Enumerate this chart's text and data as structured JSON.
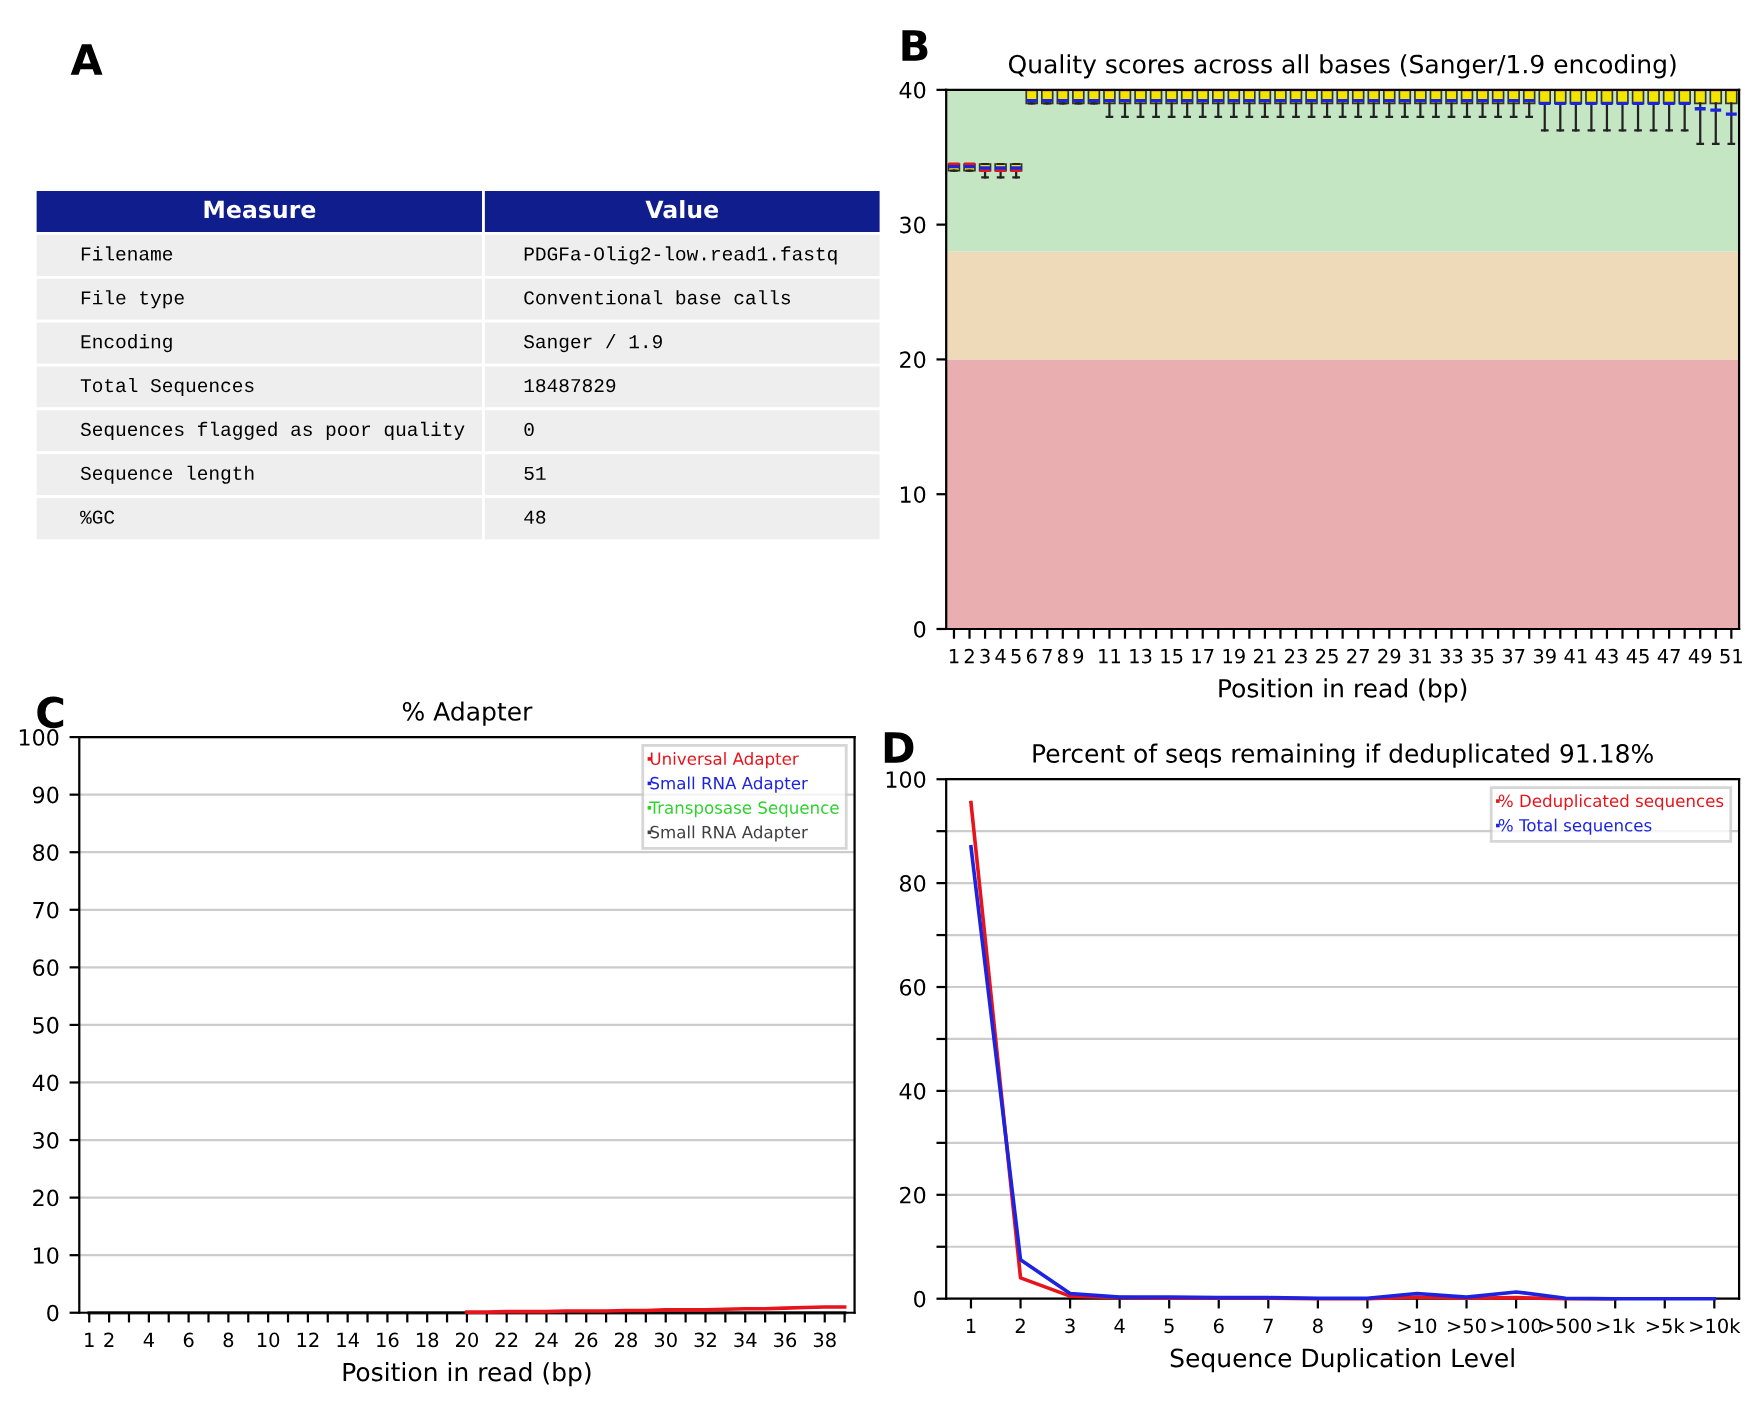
{
  "chart_data": [
    {
      "type": "other",
      "annotations": [
        "A"
      ],
      "categories": [
        "Measure",
        "Value"
      ],
      "y_categories": [
        "Filename",
        "File type",
        "Encoding",
        "Total Sequences",
        "Sequences flagged as poor quality",
        "Sequence length",
        "%GC"
      ],
      "cell_labels": [
        [
          "PDGFa-Olig2-low.read1.fastq"
        ],
        [
          "Conventional base calls"
        ],
        [
          "Sanger / 1.9"
        ],
        [
          "18487829"
        ],
        [
          "0"
        ],
        [
          "51"
        ],
        [
          "48"
        ]
      ]
    },
    {
      "type": "box",
      "title": "Quality scores across all bases (Sanger/1.9 encoding)",
      "xlabel": "Position in read (bp)",
      "annotations": [
        "B"
      ],
      "color": "#f2e600",
      "categories": [
        "1",
        "2",
        "3",
        "4",
        "5",
        "6",
        "7",
        "8",
        "9",
        null,
        "11",
        null,
        "13",
        null,
        "15",
        null,
        "17",
        null,
        "19",
        null,
        "21",
        null,
        "23",
        null,
        "25",
        null,
        "27",
        null,
        "29",
        null,
        "31",
        null,
        "33",
        null,
        "35",
        null,
        "37",
        null,
        "39",
        null,
        "41",
        null,
        "43",
        null,
        "45",
        null,
        "47",
        null,
        "49",
        null,
        "51"
      ],
      "ylim": [
        0,
        40
      ],
      "yticks": [
        0,
        10,
        20,
        30,
        40
      ],
      "grid": false,
      "bands": [
        {
          "axis": "y",
          "from": 0,
          "to": 20,
          "color": "#e8aeb0"
        },
        {
          "axis": "y",
          "from": 20,
          "to": 28,
          "color": "#eed9b8"
        },
        {
          "axis": "y",
          "from": 28,
          "to": 40,
          "color": "#c4e6c2"
        }
      ],
      "boxes": [
        {
          "low": 34,
          "q1": 34,
          "median": 34.5,
          "q3": 34.5,
          "high": 34.5,
          "mean": 34.3
        },
        {
          "low": 34,
          "q1": 34,
          "median": 34.5,
          "q3": 34.5,
          "high": 34.5,
          "mean": 34.3
        },
        {
          "low": 33.5,
          "q1": 34,
          "median": 34,
          "q3": 34.5,
          "high": 34.5,
          "mean": 34.2
        },
        {
          "low": 33.5,
          "q1": 34,
          "median": 34,
          "q3": 34.5,
          "high": 34.5,
          "mean": 34.2
        },
        {
          "low": 33.5,
          "q1": 34,
          "median": 34,
          "q3": 34.5,
          "high": 34.5,
          "mean": 34.2
        },
        {
          "low": 39,
          "q1": 39,
          "median": 40,
          "q3": 40,
          "high": 40,
          "mean": 39.2
        },
        {
          "low": 39,
          "q1": 39,
          "median": 40,
          "q3": 40,
          "high": 40,
          "mean": 39.2
        },
        {
          "low": 39,
          "q1": 39,
          "median": 40,
          "q3": 40,
          "high": 40,
          "mean": 39.2
        },
        {
          "low": 39,
          "q1": 39,
          "median": 40,
          "q3": 40,
          "high": 40,
          "mean": 39.2
        },
        {
          "low": 39,
          "q1": 39,
          "median": 40,
          "q3": 40,
          "high": 40,
          "mean": 39.2
        },
        {
          "low": 38,
          "q1": 39,
          "median": 40,
          "q3": 40,
          "high": 40,
          "mean": 39.2
        },
        {
          "low": 38,
          "q1": 39,
          "median": 40,
          "q3": 40,
          "high": 40,
          "mean": 39.2
        },
        {
          "low": 38,
          "q1": 39,
          "median": 40,
          "q3": 40,
          "high": 40,
          "mean": 39.2
        },
        {
          "low": 38,
          "q1": 39,
          "median": 40,
          "q3": 40,
          "high": 40,
          "mean": 39.2
        },
        {
          "low": 38,
          "q1": 39,
          "median": 40,
          "q3": 40,
          "high": 40,
          "mean": 39.2
        },
        {
          "low": 38,
          "q1": 39,
          "median": 40,
          "q3": 40,
          "high": 40,
          "mean": 39.2
        },
        {
          "low": 38,
          "q1": 39,
          "median": 40,
          "q3": 40,
          "high": 40,
          "mean": 39.2
        },
        {
          "low": 38,
          "q1": 39,
          "median": 40,
          "q3": 40,
          "high": 40,
          "mean": 39.2
        },
        {
          "low": 38,
          "q1": 39,
          "median": 40,
          "q3": 40,
          "high": 40,
          "mean": 39.2
        },
        {
          "low": 38,
          "q1": 39,
          "median": 40,
          "q3": 40,
          "high": 40,
          "mean": 39.2
        },
        {
          "low": 38,
          "q1": 39,
          "median": 40,
          "q3": 40,
          "high": 40,
          "mean": 39.2
        },
        {
          "low": 38,
          "q1": 39,
          "median": 40,
          "q3": 40,
          "high": 40,
          "mean": 39.2
        },
        {
          "low": 38,
          "q1": 39,
          "median": 40,
          "q3": 40,
          "high": 40,
          "mean": 39.2
        },
        {
          "low": 38,
          "q1": 39,
          "median": 40,
          "q3": 40,
          "high": 40,
          "mean": 39.2
        },
        {
          "low": 38,
          "q1": 39,
          "median": 40,
          "q3": 40,
          "high": 40,
          "mean": 39.2
        },
        {
          "low": 38,
          "q1": 39,
          "median": 40,
          "q3": 40,
          "high": 40,
          "mean": 39.2
        },
        {
          "low": 38,
          "q1": 39,
          "median": 40,
          "q3": 40,
          "high": 40,
          "mean": 39.2
        },
        {
          "low": 38,
          "q1": 39,
          "median": 40,
          "q3": 40,
          "high": 40,
          "mean": 39.2
        },
        {
          "low": 38,
          "q1": 39,
          "median": 40,
          "q3": 40,
          "high": 40,
          "mean": 39.2
        },
        {
          "low": 38,
          "q1": 39,
          "median": 40,
          "q3": 40,
          "high": 40,
          "mean": 39.2
        },
        {
          "low": 38,
          "q1": 39,
          "median": 40,
          "q3": 40,
          "high": 40,
          "mean": 39.2
        },
        {
          "low": 38,
          "q1": 39,
          "median": 40,
          "q3": 40,
          "high": 40,
          "mean": 39.2
        },
        {
          "low": 38,
          "q1": 39,
          "median": 40,
          "q3": 40,
          "high": 40,
          "mean": 39.2
        },
        {
          "low": 38,
          "q1": 39,
          "median": 40,
          "q3": 40,
          "high": 40,
          "mean": 39.2
        },
        {
          "low": 38,
          "q1": 39,
          "median": 40,
          "q3": 40,
          "high": 40,
          "mean": 39.2
        },
        {
          "low": 38,
          "q1": 39,
          "median": 40,
          "q3": 40,
          "high": 40,
          "mean": 39.2
        },
        {
          "low": 38,
          "q1": 39,
          "median": 40,
          "q3": 40,
          "high": 40,
          "mean": 39.2
        },
        {
          "low": 38,
          "q1": 39,
          "median": 40,
          "q3": 40,
          "high": 40,
          "mean": 39.2
        },
        {
          "low": 37,
          "q1": 39,
          "median": 40,
          "q3": 40,
          "high": 40,
          "mean": 39.0
        },
        {
          "low": 37,
          "q1": 39,
          "median": 40,
          "q3": 40,
          "high": 40,
          "mean": 39.0
        },
        {
          "low": 37,
          "q1": 39,
          "median": 40,
          "q3": 40,
          "high": 40,
          "mean": 39.0
        },
        {
          "low": 37,
          "q1": 39,
          "median": 40,
          "q3": 40,
          "high": 40,
          "mean": 39.0
        },
        {
          "low": 37,
          "q1": 39,
          "median": 40,
          "q3": 40,
          "high": 40,
          "mean": 39.0
        },
        {
          "low": 37,
          "q1": 39,
          "median": 40,
          "q3": 40,
          "high": 40,
          "mean": 39.0
        },
        {
          "low": 37,
          "q1": 39,
          "median": 40,
          "q3": 40,
          "high": 40,
          "mean": 39.0
        },
        {
          "low": 37,
          "q1": 39,
          "median": 40,
          "q3": 40,
          "high": 40,
          "mean": 39.0
        },
        {
          "low": 37,
          "q1": 39,
          "median": 40,
          "q3": 40,
          "high": 40,
          "mean": 39.0
        },
        {
          "low": 37,
          "q1": 39,
          "median": 40,
          "q3": 40,
          "high": 40,
          "mean": 39.0
        },
        {
          "low": 36,
          "q1": 39,
          "median": 40,
          "q3": 40,
          "high": 40,
          "mean": 38.6
        },
        {
          "low": 36,
          "q1": 39,
          "median": 40,
          "q3": 40,
          "high": 40,
          "mean": 38.5
        },
        {
          "low": 36,
          "q1": 39,
          "median": 40,
          "q3": 40,
          "high": 40,
          "mean": 38.2
        }
      ]
    },
    {
      "type": "line",
      "title": "% Adapter",
      "xlabel": "Position in read (bp)",
      "annotations": [
        "C"
      ],
      "categories": [
        "1",
        "2",
        null,
        "4",
        null,
        "6",
        null,
        "8",
        null,
        "10",
        null,
        "12",
        null,
        "14",
        null,
        "16",
        null,
        "18",
        null,
        "20",
        null,
        "22",
        null,
        "24",
        null,
        "26",
        null,
        "28",
        null,
        "30",
        null,
        "32",
        null,
        "34",
        null,
        "36",
        null,
        "38",
        null
      ],
      "ylim": [
        0,
        100
      ],
      "yticks": [
        0,
        10,
        20,
        30,
        40,
        50,
        60,
        70,
        80,
        90,
        100
      ],
      "grid": "y",
      "legend": "top right",
      "series": [
        {
          "name": "Universal Adapter",
          "color": "#e8141c",
          "values": [
            null,
            null,
            null,
            null,
            null,
            null,
            null,
            null,
            null,
            null,
            null,
            null,
            null,
            null,
            null,
            null,
            null,
            null,
            null,
            0.1,
            0.1,
            0.2,
            0.2,
            0.2,
            0.3,
            0.3,
            0.3,
            0.4,
            0.4,
            0.5,
            0.5,
            0.5,
            0.6,
            0.7,
            0.7,
            0.8,
            0.9,
            1.0,
            1.0
          ]
        },
        {
          "name": "Small RNA Adapter",
          "color": "#1c24e0",
          "values": [
            null,
            null,
            null,
            null,
            null,
            null,
            null,
            null,
            null,
            null,
            null,
            null,
            null,
            null,
            null,
            null,
            null,
            null,
            null,
            null,
            null,
            null,
            null,
            null,
            null,
            null,
            null,
            null,
            null,
            null,
            null,
            null,
            null,
            null,
            null,
            null,
            null,
            null,
            null
          ]
        },
        {
          "name": "Transposase Sequence",
          "color": "#2ed12e",
          "values": [
            null,
            null,
            null,
            null,
            null,
            null,
            null,
            null,
            null,
            null,
            null,
            null,
            null,
            null,
            null,
            null,
            null,
            null,
            null,
            null,
            null,
            null,
            null,
            null,
            null,
            null,
            null,
            null,
            null,
            null,
            null,
            null,
            null,
            null,
            null,
            null,
            null,
            null,
            null
          ]
        },
        {
          "name": "Small RNA Adapter",
          "color": "#404040",
          "values": [
            0,
            0,
            0,
            0,
            0,
            0,
            0,
            0,
            0,
            0,
            0,
            0,
            0,
            0,
            0,
            0,
            0,
            0,
            0,
            0,
            0,
            0,
            0,
            0,
            0,
            0,
            0,
            0,
            0,
            0,
            0,
            0,
            0,
            0,
            0,
            0,
            0,
            0,
            0
          ]
        }
      ]
    },
    {
      "type": "line",
      "title": "Percent of seqs remaining if deduplicated 91.18%",
      "xlabel": "Sequence Duplication Level",
      "annotations": [
        "D"
      ],
      "categories": [
        "1",
        "2",
        "3",
        "4",
        "5",
        "6",
        "7",
        "8",
        "9",
        ">10",
        ">50",
        ">100",
        ">500",
        ">1k",
        ">5k",
        ">10k"
      ],
      "ylim": [
        0,
        100
      ],
      "yticks": [
        0,
        {
          "value": 10,
          "label": null
        },
        20,
        {
          "value": 30,
          "label": null
        },
        40,
        {
          "value": 50,
          "label": null
        },
        60,
        {
          "value": 70,
          "label": null
        },
        80,
        {
          "value": 90,
          "label": null
        },
        100
      ],
      "grid": "y",
      "legend": "top right",
      "series": [
        {
          "name": "% Deduplicated sequences",
          "color": "#e8141c",
          "values": [
            95.5,
            4,
            0.5,
            0.2,
            0.1,
            0.1,
            0.1,
            0,
            0,
            0.3,
            0.1,
            0.2,
            0,
            0,
            null,
            null
          ]
        },
        {
          "name": "% Total sequences",
          "color": "#1c24e0",
          "values": [
            87,
            7.5,
            1,
            0.3,
            0.3,
            0.2,
            0.2,
            0.1,
            0.1,
            1,
            0.3,
            1.3,
            0.1,
            0,
            0,
            0
          ]
        }
      ]
    }
  ]
}
